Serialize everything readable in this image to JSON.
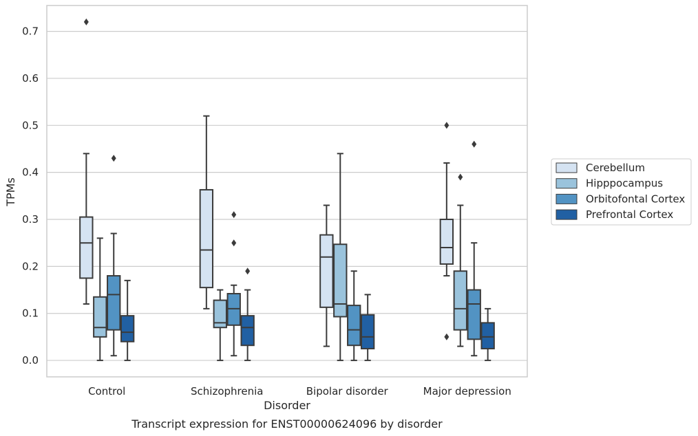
{
  "chart_data": {
    "type": "box",
    "categories": [
      "Control",
      "Schizophrenia",
      "Bipolar disorder",
      "Major depression"
    ],
    "xlabel": "Disorder",
    "ylabel": "TPMs",
    "ylim": [
      -0.035,
      0.755
    ],
    "yticks": [
      "0.0",
      "0.1",
      "0.2",
      "0.3",
      "0.4",
      "0.5",
      "0.6",
      "0.7"
    ],
    "grid": true,
    "legend_position": "right",
    "caption": "Transcript expression for ENST00000624096 by disorder",
    "series": [
      {
        "name": "Cerebellum",
        "color": "#d5e3f2",
        "boxes": [
          {
            "whislo": 0.12,
            "q1": 0.175,
            "med": 0.25,
            "q3": 0.305,
            "whishi": 0.44,
            "fliers": [
              0.72
            ]
          },
          {
            "whislo": 0.11,
            "q1": 0.155,
            "med": 0.235,
            "q3": 0.363,
            "whishi": 0.52,
            "fliers": []
          },
          {
            "whislo": 0.03,
            "q1": 0.113,
            "med": 0.22,
            "q3": 0.267,
            "whishi": 0.33,
            "fliers": []
          },
          {
            "whislo": 0.18,
            "q1": 0.205,
            "med": 0.24,
            "q3": 0.3,
            "whishi": 0.42,
            "fliers": [
              0.5,
              0.05
            ]
          }
        ]
      },
      {
        "name": "Hipppocampus",
        "color": "#9ac3dc",
        "boxes": [
          {
            "whislo": 0.0,
            "q1": 0.05,
            "med": 0.07,
            "q3": 0.135,
            "whishi": 0.26,
            "fliers": []
          },
          {
            "whislo": 0.0,
            "q1": 0.07,
            "med": 0.08,
            "q3": 0.128,
            "whishi": 0.15,
            "fliers": []
          },
          {
            "whislo": 0.0,
            "q1": 0.093,
            "med": 0.12,
            "q3": 0.247,
            "whishi": 0.44,
            "fliers": []
          },
          {
            "whislo": 0.03,
            "q1": 0.065,
            "med": 0.11,
            "q3": 0.19,
            "whishi": 0.33,
            "fliers": [
              0.39
            ]
          }
        ]
      },
      {
        "name": "Orbitofontal Cortex",
        "color": "#5293c3",
        "boxes": [
          {
            "whislo": 0.01,
            "q1": 0.065,
            "med": 0.14,
            "q3": 0.18,
            "whishi": 0.27,
            "fliers": [
              0.43
            ]
          },
          {
            "whislo": 0.01,
            "q1": 0.075,
            "med": 0.11,
            "q3": 0.142,
            "whishi": 0.16,
            "fliers": [
              0.31,
              0.25
            ]
          },
          {
            "whislo": 0.0,
            "q1": 0.032,
            "med": 0.065,
            "q3": 0.117,
            "whishi": 0.19,
            "fliers": []
          },
          {
            "whislo": 0.01,
            "q1": 0.045,
            "med": 0.12,
            "q3": 0.15,
            "whishi": 0.25,
            "fliers": [
              0.46
            ]
          }
        ]
      },
      {
        "name": "Prefrontal Cortex",
        "color": "#2160a3",
        "boxes": [
          {
            "whislo": 0.0,
            "q1": 0.04,
            "med": 0.06,
            "q3": 0.095,
            "whishi": 0.17,
            "fliers": []
          },
          {
            "whislo": 0.0,
            "q1": 0.032,
            "med": 0.07,
            "q3": 0.095,
            "whishi": 0.15,
            "fliers": [
              0.19
            ]
          },
          {
            "whislo": 0.0,
            "q1": 0.025,
            "med": 0.05,
            "q3": 0.097,
            "whishi": 0.14,
            "fliers": []
          },
          {
            "whislo": 0.0,
            "q1": 0.025,
            "med": 0.05,
            "q3": 0.08,
            "whishi": 0.11,
            "fliers": []
          }
        ]
      }
    ]
  }
}
